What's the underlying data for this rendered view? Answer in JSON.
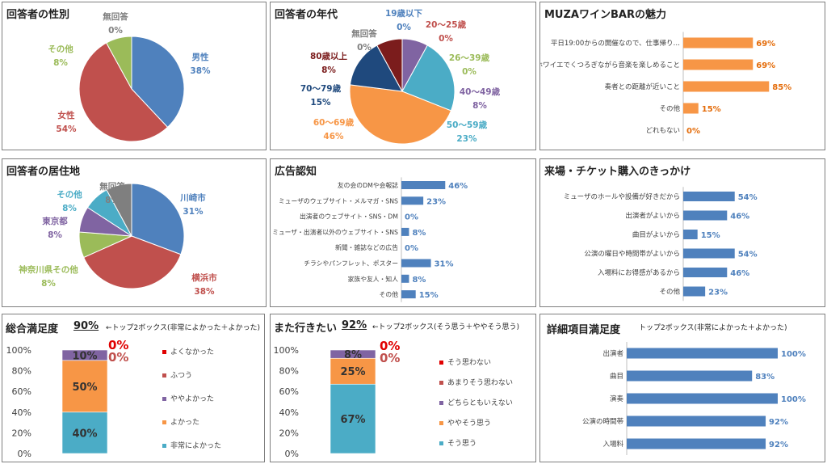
{
  "colors": {
    "blue": "#4f81bd",
    "red": "#c0504d",
    "green": "#9bbb59",
    "purple": "#8064a2",
    "teal": "#4bacc6",
    "orange": "#f79646",
    "navy": "#1f497d",
    "maroon": "#7b1c1c",
    "gray": "#7f7f7f",
    "alert": "#e00000"
  },
  "panels": {
    "gender": {
      "title": "回答者の性別"
    },
    "age": {
      "title": "回答者の年代"
    },
    "appeal": {
      "title": "MUZAワインBARの魅力"
    },
    "residence": {
      "title": "回答者の居住地"
    },
    "ad": {
      "title": "広告認知"
    },
    "trigger": {
      "title": "来場・チケット購入のきっかけ"
    },
    "overall": {
      "title": "総合満足度",
      "top2": "90%",
      "note": "←トップ2ボックス(非常によかった＋よかった)"
    },
    "again": {
      "title": "また行きたい",
      "top2": "92%",
      "note": "←トップ2ボックス(そう思う＋ややそう思う)"
    },
    "detail": {
      "title": "詳細項目満足度",
      "note": "トップ2ボックス(非常によかった＋よかった)"
    }
  },
  "chart_data": [
    {
      "id": "gender",
      "type": "pie",
      "slices": [
        {
          "label": "男性",
          "value": 38,
          "color": "#4f81bd"
        },
        {
          "label": "女性",
          "value": 54,
          "color": "#c0504d"
        },
        {
          "label": "その他",
          "value": 8,
          "color": "#9bbb59"
        },
        {
          "label": "無回答",
          "value": 0,
          "color": "#7f7f7f"
        }
      ]
    },
    {
      "id": "age",
      "type": "pie",
      "slices": [
        {
          "label": "19歳以下",
          "value": 0,
          "color": "#4f81bd"
        },
        {
          "label": "20〜25歳",
          "value": 0,
          "color": "#c0504d"
        },
        {
          "label": "26〜39歳",
          "value": 0,
          "color": "#9bbb59"
        },
        {
          "label": "40〜49歳",
          "value": 8,
          "color": "#8064a2"
        },
        {
          "label": "50〜59歳",
          "value": 23,
          "color": "#4bacc6"
        },
        {
          "label": "60〜69歳",
          "value": 46,
          "color": "#f79646"
        },
        {
          "label": "70〜79歳",
          "value": 15,
          "color": "#1f497d"
        },
        {
          "label": "80歳以上",
          "value": 8,
          "color": "#7b1c1c"
        },
        {
          "label": "無回答",
          "value": 0,
          "color": "#7f7f7f"
        }
      ]
    },
    {
      "id": "appeal",
      "type": "bar",
      "orientation": "horizontal",
      "color": "#f79646",
      "xlim": [
        0,
        100
      ],
      "categories": [
        "平日19:00からの開催なので、仕事帰り…",
        "ホワイエでくつろぎながら音楽を楽しめること",
        "奏者との距離が近いこと",
        "その他",
        "どれもない"
      ],
      "values": [
        69,
        69,
        85,
        15,
        0
      ],
      "data_labels": [
        "69%",
        "69%",
        "85%",
        "15%",
        "0%"
      ]
    },
    {
      "id": "residence",
      "type": "pie",
      "slices": [
        {
          "label": "川崎市",
          "value": 31,
          "color": "#4f81bd"
        },
        {
          "label": "横浜市",
          "value": 38,
          "color": "#c0504d"
        },
        {
          "label": "神奈川県その他",
          "value": 8,
          "color": "#9bbb59"
        },
        {
          "label": "東京都",
          "value": 8,
          "color": "#8064a2"
        },
        {
          "label": "その他",
          "value": 8,
          "color": "#4bacc6"
        },
        {
          "label": "無回答",
          "value": 8,
          "color": "#7f7f7f"
        }
      ]
    },
    {
      "id": "ad",
      "type": "bar",
      "orientation": "horizontal",
      "color": "#4f81bd",
      "xlim": [
        0,
        100
      ],
      "categories": [
        "友の会のDMや会報誌",
        "ミューザのウェブサイト・メルマガ・SNS",
        "出演者のウェブサイト・SNS・DM",
        "ミューザ・出演者以外のウェブサイト・SNS",
        "新聞・雑誌などの広告",
        "チラシやパンフレット、ポスター",
        "家族や友人・知人",
        "その他"
      ],
      "values": [
        46,
        23,
        0,
        8,
        0,
        31,
        8,
        15
      ],
      "data_labels": [
        "46%",
        "23%",
        "0%",
        "8%",
        "0%",
        "31%",
        "8%",
        "15%"
      ]
    },
    {
      "id": "trigger",
      "type": "bar",
      "orientation": "horizontal",
      "color": "#4f81bd",
      "xlim": [
        0,
        100
      ],
      "categories": [
        "ミューザのホールや設備が好きだから",
        "出演者がよいから",
        "曲目がよいから",
        "公演の曜日や時間帯がよいから",
        "入場料にお得感があるから",
        "その他"
      ],
      "values": [
        54,
        46,
        15,
        54,
        46,
        23
      ],
      "data_labels": [
        "54%",
        "46%",
        "15%",
        "54%",
        "46%",
        "23%"
      ]
    },
    {
      "id": "overall",
      "type": "bar",
      "stacked": true,
      "ylim": [
        0,
        100
      ],
      "yticks": [
        "0%",
        "20%",
        "40%",
        "60%",
        "80%",
        "100%"
      ],
      "series": [
        {
          "name": "非常によかった",
          "value": 40,
          "label": "40%",
          "color": "#4bacc6"
        },
        {
          "name": "よかった",
          "value": 50,
          "label": "50%",
          "color": "#f79646"
        },
        {
          "name": "ややよかった",
          "value": 10,
          "label": "10%",
          "color": "#8064a2"
        },
        {
          "name": "ふつう",
          "value": 0,
          "label": "0%",
          "color": "#c0504d"
        },
        {
          "name": "よくなかった",
          "value": 0,
          "label": "0%",
          "color": "#e00000"
        }
      ],
      "legend": [
        "よくなかった",
        "ふつう",
        "ややよかった",
        "よかった",
        "非常によかった"
      ]
    },
    {
      "id": "again",
      "type": "bar",
      "stacked": true,
      "ylim": [
        0,
        100
      ],
      "yticks": [
        "0%",
        "20%",
        "40%",
        "60%",
        "80%",
        "100%"
      ],
      "series": [
        {
          "name": "そう思う",
          "value": 67,
          "label": "67%",
          "color": "#4bacc6"
        },
        {
          "name": "ややそう思う",
          "value": 25,
          "label": "25%",
          "color": "#f79646"
        },
        {
          "name": "どちらともいえない",
          "value": 8,
          "label": "8%",
          "color": "#8064a2"
        },
        {
          "name": "あまりそう思わない",
          "value": 0,
          "label": "0%",
          "color": "#c0504d"
        },
        {
          "name": "そう思わない",
          "value": 0,
          "label": "0%",
          "color": "#e00000"
        }
      ],
      "legend": [
        "そう思わない",
        "あまりそう思わない",
        "どちらともいえない",
        "ややそう思う",
        "そう思う"
      ]
    },
    {
      "id": "detail",
      "type": "bar",
      "orientation": "horizontal",
      "color": "#4f81bd",
      "xlim": [
        0,
        100
      ],
      "categories": [
        "出演者",
        "曲目",
        "演奏",
        "公演の時間帯",
        "入場料"
      ],
      "values": [
        100,
        83,
        100,
        92,
        92
      ],
      "data_labels": [
        "100%",
        "83%",
        "100%",
        "92%",
        "92%"
      ]
    }
  ]
}
